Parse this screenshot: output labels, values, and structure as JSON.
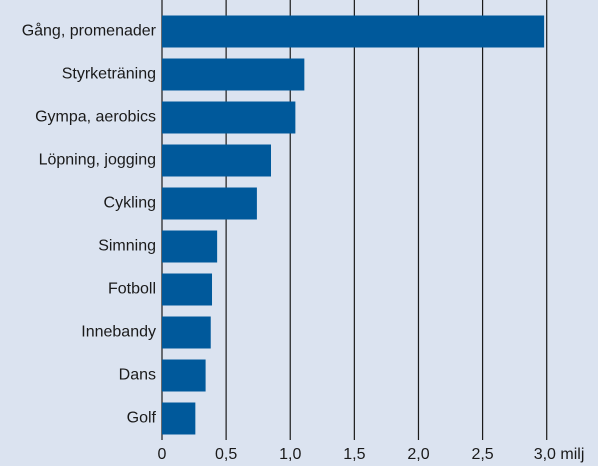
{
  "chart_data": {
    "type": "bar",
    "orientation": "horizontal",
    "categories": [
      "Gång, promenader",
      "Styrketräning",
      "Gympa, aerobics",
      "Löpning, jogging",
      "Cykling",
      "Simning",
      "Fotboll",
      "Innebandy",
      "Dans",
      "Golf"
    ],
    "values": [
      2.98,
      1.11,
      1.04,
      0.85,
      0.74,
      0.43,
      0.39,
      0.38,
      0.34,
      0.26
    ],
    "color": "#00599b",
    "xlim": [
      0,
      3.4
    ],
    "xticks": [
      0,
      {
        "value": 0.5,
        "label": "0,5"
      },
      {
        "value": 1.0,
        "label": "1,0"
      },
      {
        "value": 1.5,
        "label": "1,5"
      },
      {
        "value": 2.0,
        "label": "2,0"
      },
      {
        "value": 2.5,
        "label": "2,5"
      },
      {
        "value": 3.0,
        "label": "3,0 milj"
      }
    ],
    "grid": true
  }
}
